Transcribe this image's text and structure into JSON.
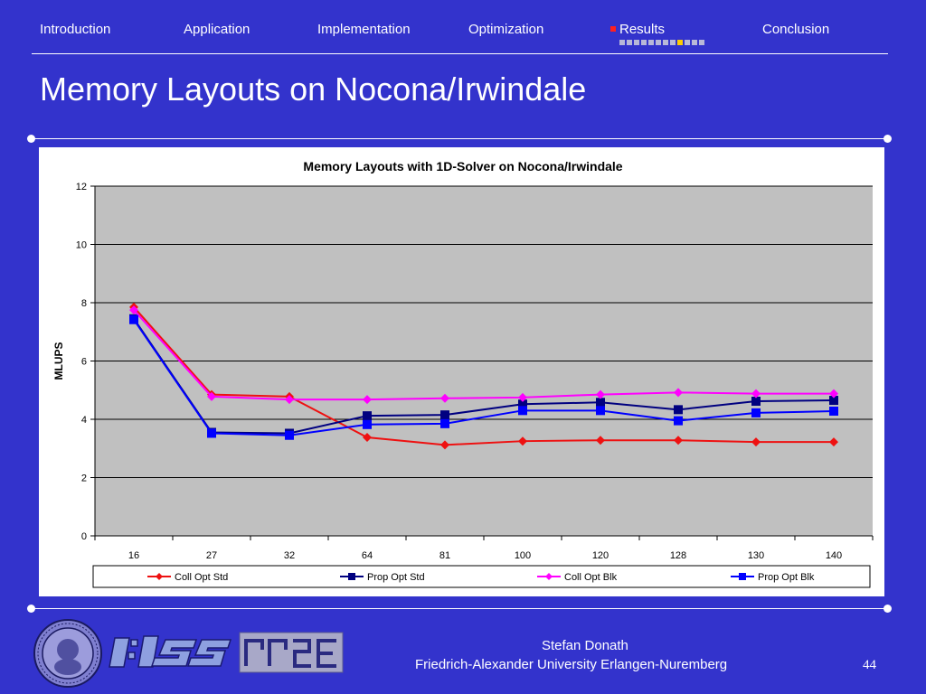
{
  "nav": {
    "items": [
      {
        "label": "Introduction"
      },
      {
        "label": "Application"
      },
      {
        "label": "Implementation"
      },
      {
        "label": "Optimization"
      },
      {
        "label": "Results"
      },
      {
        "label": "Conclusion"
      }
    ],
    "active_index": 4,
    "progress": {
      "total": 12,
      "current": 9
    }
  },
  "slide": {
    "title": "Memory Layouts on Nocona/Irwindale"
  },
  "footer": {
    "author": "Stefan Donath",
    "affiliation": "Friedrich-Alexander University Erlangen-Nuremberg",
    "page_number": "44"
  },
  "colors": {
    "background": "#3333cc",
    "plot_area": "#c0c0c0",
    "series": [
      "#ee1111",
      "#000080",
      "#ff00ff",
      "#0000ff"
    ]
  },
  "chart_data": {
    "type": "line",
    "title": "Memory Layouts with 1D-Solver on Nocona/Irwindale",
    "xlabel": "",
    "ylabel": "MLUPS",
    "categories": [
      "16",
      "27",
      "32",
      "64",
      "81",
      "100",
      "120",
      "128",
      "130",
      "140"
    ],
    "ylim": [
      0,
      12
    ],
    "yticks": [
      0,
      2,
      4,
      6,
      8,
      10,
      12
    ],
    "grid": true,
    "legend_position": "bottom",
    "series": [
      {
        "name": "Coll Opt Std",
        "marker": "diamond",
        "values": [
          7.85,
          4.85,
          4.78,
          3.38,
          3.12,
          3.25,
          3.28,
          3.28,
          3.22,
          3.22
        ]
      },
      {
        "name": "Prop Opt Std",
        "marker": "square",
        "values": [
          7.45,
          3.55,
          3.52,
          4.12,
          4.15,
          4.52,
          4.58,
          4.33,
          4.62,
          4.65
        ]
      },
      {
        "name": "Coll Opt Blk",
        "marker": "diamond",
        "values": [
          7.75,
          4.78,
          4.68,
          4.68,
          4.72,
          4.75,
          4.85,
          4.92,
          4.88,
          4.88
        ]
      },
      {
        "name": "Prop Opt Blk",
        "marker": "square",
        "values": [
          7.42,
          3.52,
          3.45,
          3.82,
          3.85,
          4.3,
          4.3,
          3.95,
          4.22,
          4.28
        ]
      }
    ]
  }
}
